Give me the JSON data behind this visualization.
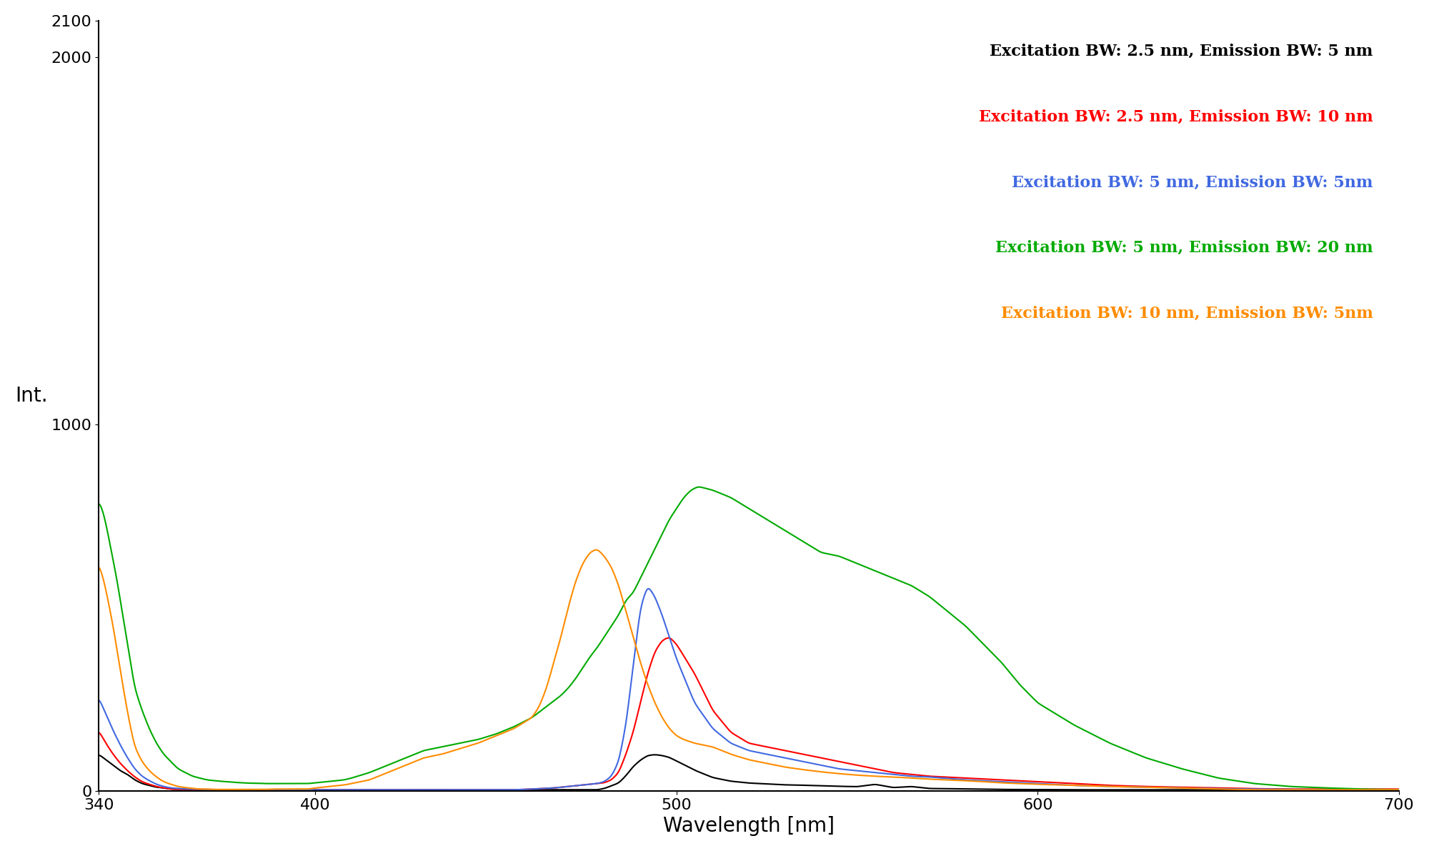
{
  "title": "",
  "xlabel": "Wavelength [nm]",
  "ylabel": "Int.",
  "xlim": [
    340,
    700
  ],
  "ylim": [
    0,
    2100
  ],
  "xticks": [
    340,
    400,
    500,
    600,
    700
  ],
  "yticks": [
    0,
    1000,
    2000,
    2100
  ],
  "ytick_labels": [
    "0",
    "1000",
    "2000",
    "2100"
  ],
  "background_color": "#ffffff",
  "legend_entries": [
    {
      "label": "Excitation BW: 2.5 nm, Emission BW: 5 nm",
      "color": "#000000"
    },
    {
      "label": "Excitation BW: 2.5 nm, Emission BW: 10 nm",
      "color": "#ff0000"
    },
    {
      "label": "Excitation BW: 5 nm, Emission BW: 5nm",
      "color": "#4169e1"
    },
    {
      "label": "Excitation BW: 5 nm, Emission BW: 20 nm",
      "color": "#00aa00"
    },
    {
      "label": "Excitation BW: 10 nm, Emission BW: 5nm",
      "color": "#ff8c00"
    }
  ],
  "curves": {
    "black": {
      "color": "#000000",
      "x": [
        340,
        342,
        344,
        346,
        348,
        350,
        352,
        354,
        356,
        358,
        360,
        365,
        370,
        375,
        380,
        385,
        390,
        395,
        400,
        405,
        410,
        415,
        420,
        425,
        430,
        435,
        440,
        445,
        450,
        455,
        460,
        462,
        464,
        466,
        468,
        470,
        472,
        474,
        476,
        478,
        480,
        482,
        484,
        486,
        488,
        490,
        492,
        494,
        496,
        498,
        500,
        505,
        510,
        515,
        520,
        525,
        530,
        535,
        540,
        545,
        550,
        560,
        570,
        580,
        590,
        600,
        610,
        620,
        630,
        640,
        650,
        660,
        670,
        680,
        690,
        700
      ],
      "y": [
        100,
        85,
        70,
        55,
        45,
        30,
        20,
        15,
        10,
        8,
        5,
        4,
        3,
        3,
        3,
        3,
        3,
        3,
        3,
        3,
        3,
        3,
        3,
        3,
        3,
        3,
        3,
        3,
        3,
        3,
        3,
        3,
        3,
        3,
        3,
        3,
        3,
        3,
        3,
        3,
        3,
        3,
        3,
        3,
        3,
        3,
        3,
        3,
        3,
        3,
        3,
        3,
        3,
        3,
        3,
        3,
        3,
        3,
        3,
        3,
        3,
        3,
        3,
        3,
        3,
        3,
        3,
        3,
        3,
        3,
        3,
        3,
        3,
        3,
        3,
        3
      ]
    },
    "black_main": {
      "color": "#000000",
      "x": [
        460,
        462,
        464,
        466,
        468,
        470,
        472,
        474,
        476,
        478,
        480,
        482,
        484,
        486,
        488,
        490,
        492,
        494,
        496,
        498,
        500,
        505,
        510,
        515,
        520,
        525,
        530,
        535,
        540,
        545,
        550,
        555,
        560,
        565,
        570,
        580,
        590,
        600,
        610,
        620,
        630,
        640,
        650,
        660,
        670,
        680,
        690,
        700
      ],
      "y": [
        3,
        3,
        3,
        3,
        3,
        3,
        3,
        3,
        3,
        3,
        10,
        25,
        40,
        80,
        130,
        165,
        190,
        195,
        190,
        180,
        160,
        110,
        70,
        50,
        40,
        35,
        30,
        28,
        25,
        22,
        20,
        18,
        15,
        12,
        10,
        8,
        5,
        4,
        3,
        3,
        3,
        3,
        3,
        3,
        3,
        3,
        3,
        3
      ]
    },
    "red": {
      "color": "#ff0000",
      "x": [
        340,
        342,
        344,
        346,
        348,
        350,
        352,
        354,
        356,
        358,
        360,
        365,
        370,
        375,
        380,
        385,
        390,
        395,
        400,
        405,
        410,
        415,
        420,
        425,
        430,
        435,
        440,
        445,
        450,
        455,
        460,
        462,
        464,
        466,
        468,
        470,
        472,
        474,
        476,
        478,
        480,
        482,
        484,
        486,
        488,
        490,
        492,
        494,
        496,
        498,
        500,
        505,
        510,
        515,
        520,
        525,
        530,
        535,
        540,
        545,
        550,
        555,
        560,
        565,
        570,
        580,
        590,
        600,
        610,
        620,
        630,
        640,
        650,
        660,
        670,
        680,
        690,
        700
      ],
      "y": [
        165,
        130,
        100,
        75,
        55,
        38,
        25,
        18,
        12,
        8,
        5,
        4,
        3,
        3,
        3,
        3,
        3,
        3,
        3,
        3,
        3,
        3,
        3,
        3,
        3,
        3,
        3,
        3,
        3,
        3,
        5,
        6,
        7,
        8,
        10,
        12,
        14,
        16,
        18,
        20,
        22,
        30,
        50,
        100,
        160,
        240,
        320,
        380,
        410,
        420,
        400,
        320,
        220,
        160,
        130,
        120,
        110,
        100,
        90,
        80,
        70,
        60,
        50,
        45,
        40,
        35,
        30,
        25,
        20,
        15,
        12,
        10,
        8,
        6,
        5,
        5,
        5,
        5
      ]
    },
    "blue": {
      "color": "#4169e1",
      "x": [
        340,
        342,
        344,
        346,
        348,
        350,
        352,
        354,
        356,
        358,
        360,
        365,
        370,
        375,
        380,
        385,
        390,
        395,
        400,
        405,
        410,
        415,
        420,
        425,
        430,
        435,
        440,
        445,
        450,
        455,
        460,
        462,
        464,
        466,
        468,
        470,
        472,
        474,
        476,
        478,
        480,
        482,
        484,
        486,
        488,
        490,
        492,
        494,
        496,
        498,
        500,
        505,
        510,
        515,
        520,
        525,
        530,
        535,
        540,
        545,
        550,
        555,
        560,
        565,
        570,
        580,
        590,
        600,
        610,
        620,
        630,
        640,
        650,
        660,
        670,
        680,
        690,
        700
      ],
      "y": [
        255,
        210,
        165,
        125,
        90,
        60,
        40,
        28,
        18,
        12,
        8,
        5,
        4,
        3,
        3,
        3,
        3,
        3,
        3,
        3,
        3,
        3,
        3,
        3,
        3,
        3,
        3,
        3,
        3,
        3,
        5,
        6,
        7,
        8,
        10,
        12,
        14,
        16,
        18,
        20,
        25,
        40,
        80,
        180,
        340,
        500,
        560,
        530,
        480,
        420,
        360,
        240,
        170,
        130,
        110,
        100,
        90,
        80,
        70,
        60,
        55,
        50,
        45,
        40,
        38,
        30,
        25,
        20,
        15,
        12,
        10,
        8,
        6,
        5,
        4,
        3,
        3,
        3
      ]
    },
    "green": {
      "color": "#00aa00",
      "x": [
        340,
        341,
        342,
        343,
        344,
        345,
        346,
        347,
        348,
        349,
        350,
        352,
        354,
        356,
        358,
        360,
        362,
        364,
        366,
        368,
        370,
        372,
        374,
        376,
        378,
        380,
        382,
        384,
        386,
        388,
        390,
        392,
        394,
        396,
        398,
        400,
        402,
        404,
        406,
        408,
        410,
        415,
        420,
        425,
        430,
        435,
        440,
        445,
        450,
        455,
        460,
        462,
        464,
        466,
        468,
        470,
        472,
        474,
        476,
        478,
        480,
        482,
        484,
        486,
        488,
        490,
        492,
        494,
        496,
        498,
        500,
        502,
        504,
        506,
        510,
        515,
        520,
        525,
        530,
        535,
        540,
        545,
        550,
        555,
        560,
        565,
        570,
        575,
        580,
        585,
        590,
        595,
        600,
        610,
        620,
        630,
        640,
        650,
        660,
        670,
        680,
        690,
        700
      ],
      "y": [
        790,
        770,
        730,
        680,
        630,
        580,
        520,
        460,
        400,
        340,
        280,
        220,
        170,
        130,
        100,
        80,
        60,
        50,
        40,
        35,
        30,
        28,
        26,
        25,
        23,
        22,
        21,
        21,
        20,
        20,
        20,
        20,
        20,
        20,
        20,
        22,
        24,
        26,
        28,
        30,
        35,
        50,
        70,
        90,
        110,
        120,
        130,
        140,
        155,
        175,
        200,
        215,
        230,
        245,
        260,
        280,
        305,
        335,
        365,
        390,
        420,
        450,
        480,
        520,
        540,
        580,
        620,
        660,
        700,
        740,
        770,
        800,
        820,
        830,
        820,
        800,
        770,
        740,
        710,
        680,
        650,
        640,
        620,
        600,
        580,
        560,
        530,
        490,
        450,
        400,
        350,
        290,
        240,
        180,
        130,
        90,
        60,
        35,
        20,
        12,
        8,
        5,
        3
      ]
    },
    "orange": {
      "color": "#ff8c00",
      "x": [
        340,
        341,
        342,
        343,
        344,
        345,
        346,
        347,
        348,
        349,
        350,
        352,
        354,
        356,
        358,
        360,
        362,
        364,
        366,
        368,
        370,
        372,
        374,
        376,
        378,
        380,
        382,
        384,
        386,
        388,
        390,
        392,
        394,
        396,
        398,
        400,
        402,
        404,
        406,
        408,
        410,
        415,
        420,
        425,
        430,
        435,
        440,
        445,
        450,
        455,
        460,
        462,
        464,
        466,
        468,
        470,
        472,
        474,
        476,
        478,
        480,
        482,
        484,
        486,
        488,
        490,
        492,
        494,
        496,
        498,
        500,
        502,
        505,
        510,
        515,
        520,
        525,
        530,
        535,
        540,
        545,
        550,
        555,
        560,
        565,
        570,
        575,
        580,
        585,
        590,
        595,
        600,
        610,
        620,
        630,
        640,
        650,
        660,
        670,
        680,
        690,
        700
      ],
      "y": [
        620,
        590,
        550,
        500,
        450,
        390,
        330,
        270,
        215,
        165,
        120,
        80,
        55,
        38,
        25,
        18,
        12,
        9,
        7,
        5,
        5,
        4,
        4,
        4,
        4,
        4,
        4,
        4,
        4,
        5,
        5,
        5,
        5,
        5,
        5,
        8,
        10,
        12,
        14,
        16,
        20,
        30,
        50,
        70,
        90,
        100,
        115,
        130,
        150,
        170,
        200,
        230,
        280,
        350,
        420,
        500,
        570,
        620,
        650,
        660,
        640,
        610,
        560,
        490,
        420,
        350,
        290,
        240,
        200,
        170,
        150,
        140,
        130,
        120,
        100,
        85,
        75,
        65,
        58,
        52,
        47,
        43,
        40,
        38,
        35,
        32,
        30,
        28,
        25,
        22,
        20,
        18,
        15,
        12,
        10,
        8,
        5,
        3,
        3,
        3,
        3,
        3
      ]
    }
  }
}
